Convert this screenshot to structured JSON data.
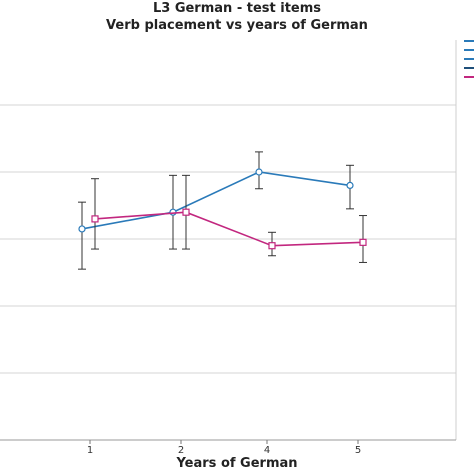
{
  "chart_data": {
    "type": "line",
    "title": "L3 German - test items",
    "subtitle": "Verb placement vs years of German",
    "xlabel": "Years of German",
    "ylabel": "",
    "categories": [
      "1",
      "2",
      "4",
      "5"
    ],
    "ylim": [
      0,
      6
    ],
    "grid": true,
    "legend": "top-right",
    "series": [
      {
        "color": "#2a7ab9",
        "marker": "circle",
        "values": [
          3.15,
          3.4,
          4.0,
          3.8
        ],
        "error_low": [
          2.55,
          2.85,
          3.75,
          3.45
        ],
        "error_high": [
          3.55,
          3.95,
          4.3,
          4.1
        ]
      },
      {
        "color": "#c2277f",
        "marker": "square",
        "values": [
          3.3,
          3.4,
          2.9,
          2.95
        ],
        "error_low": [
          2.85,
          2.85,
          2.75,
          2.65
        ],
        "error_high": [
          3.9,
          3.95,
          3.1,
          3.35
        ]
      }
    ],
    "legend_colors": [
      "#2a7ab9",
      "#2a7ab9",
      "#2a7ab9",
      "#1f4f7a",
      "#c2277f"
    ]
  }
}
